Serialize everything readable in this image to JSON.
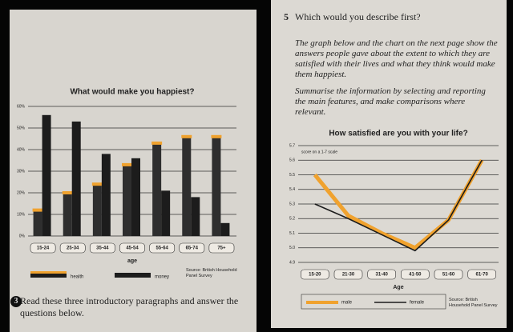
{
  "chart_data": [
    {
      "type": "bar",
      "title": "What would make you happiest?",
      "categories": [
        "15-24",
        "25-34",
        "35-44",
        "45-54",
        "55-64",
        "65-74",
        "75+"
      ],
      "series": [
        {
          "name": "health",
          "color": "#f0a22e",
          "values": [
            12,
            20,
            24,
            33,
            43,
            46,
            46
          ]
        },
        {
          "name": "money",
          "color": "#1c1c1c",
          "values": [
            56,
            53,
            38,
            36,
            21,
            18,
            6
          ]
        }
      ],
      "ylim": [
        0,
        60
      ],
      "yticks": [
        {
          "value": 0,
          "label": "0%"
        },
        {
          "value": 10,
          "label": "10%"
        },
        {
          "value": 20,
          "label": "20%"
        },
        {
          "value": 30,
          "label": "30%"
        },
        {
          "value": 40,
          "label": "40%"
        },
        {
          "value": 50,
          "label": "50%"
        },
        {
          "value": 60,
          "label": "60%"
        }
      ],
      "xlabel": "age",
      "source": "Source: British Household Panel Survey",
      "grid": true
    },
    {
      "type": "line",
      "title": "How satisfied are you with your life?",
      "annotation": "score on a 1-7 scale",
      "categories": [
        "15-20",
        "21-30",
        "31-40",
        "41-50",
        "51-60",
        "61-70"
      ],
      "series": [
        {
          "name": "male",
          "color": "#f0a22e",
          "values": [
            5.5,
            5.22,
            5.1,
            5.0,
            5.19,
            5.6
          ]
        },
        {
          "name": "female",
          "color": "#1c1c1c",
          "values": [
            5.3,
            5.2,
            5.09,
            4.98,
            5.19,
            5.6
          ]
        }
      ],
      "ylim": [
        4.9,
        5.7
      ],
      "yticks": [
        4.9,
        {
          "value": 5,
          "label": "5.0"
        },
        5.1,
        5.2,
        5.3,
        5.4,
        5.5,
        5.6,
        5.7
      ],
      "xlabel": "Age",
      "source": "Source: British Household Panel Survey",
      "grid": true
    }
  ],
  "left_page": {
    "instruction_number": "3",
    "instruction": "Read these three introductory paragraphs and answer the questions below."
  },
  "right_page": {
    "question_number": "5",
    "question": "Which would you describe first?",
    "paragraphs": [
      "The graph below and the chart on the next page show the answers people gave about the extent to which they are satisfied with their lives and what they think would make them happiest.",
      "Summarise the information by selecting and reporting the main features, and make comparisons where relevant."
    ]
  }
}
